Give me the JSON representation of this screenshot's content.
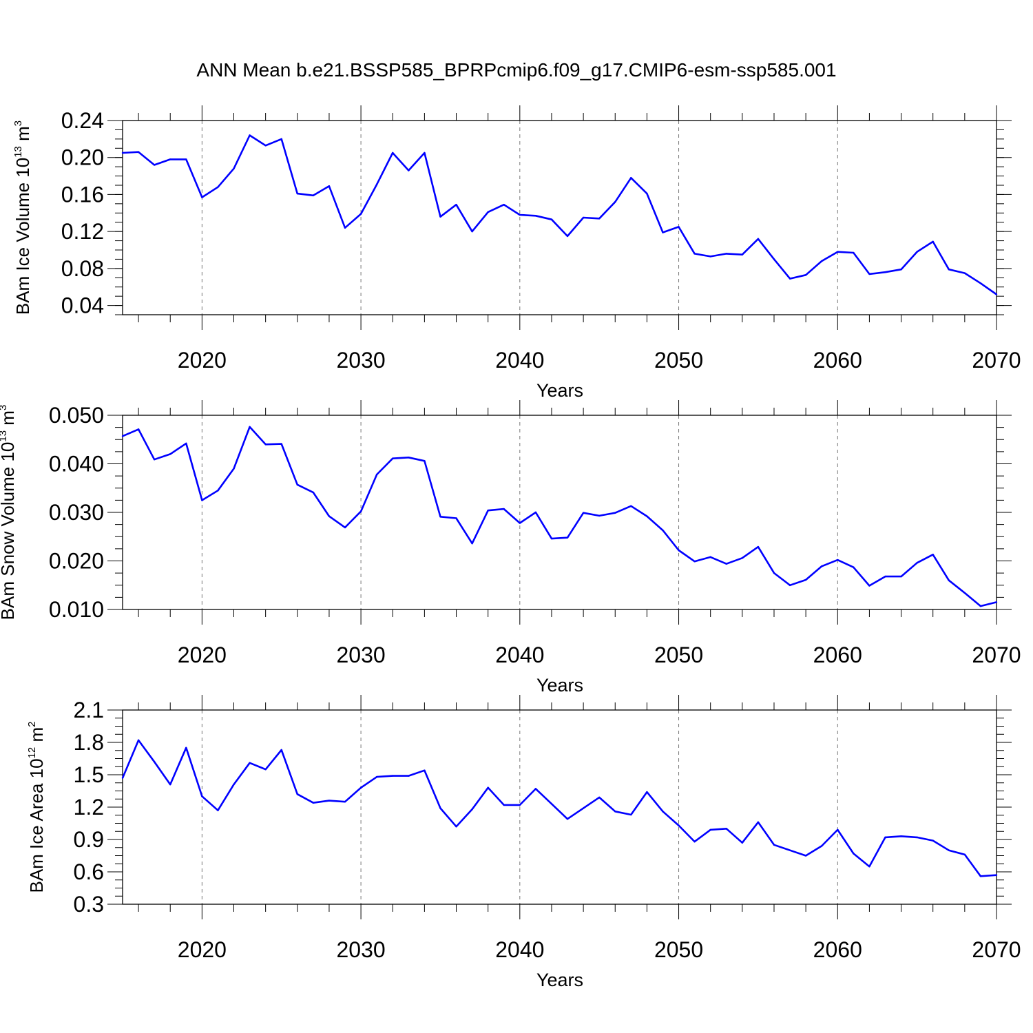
{
  "title": "ANN Mean b.e21.BSSP585_BPRPcmip6.f09_g17.CMIP6-esm-ssp585.001",
  "chart_data": [
    {
      "type": "line",
      "xlabel": "Years",
      "ylabel": {
        "prefix": "BAm Ice Volume 10",
        "exp": "13",
        "unit": " m",
        "unit_exp": "3"
      },
      "xlim": [
        2015,
        2070
      ],
      "ylim": [
        0.03,
        0.24
      ],
      "xticks": [
        2020,
        2030,
        2040,
        2050,
        2060,
        2070
      ],
      "yticks": [
        0.04,
        0.08,
        0.12,
        0.16,
        0.2,
        0.24
      ],
      "ytick_labels": [
        "0.04",
        "0.08",
        "0.12",
        "0.16",
        "0.20",
        "0.24"
      ],
      "grid": "dashed vertical at major x ticks",
      "color": "#0000ff",
      "x": [
        2015,
        2016,
        2017,
        2018,
        2019,
        2020,
        2021,
        2022,
        2023,
        2024,
        2025,
        2026,
        2027,
        2028,
        2029,
        2030,
        2031,
        2032,
        2033,
        2034,
        2035,
        2036,
        2037,
        2038,
        2039,
        2040,
        2041,
        2042,
        2043,
        2044,
        2045,
        2046,
        2047,
        2048,
        2049,
        2050,
        2051,
        2052,
        2053,
        2054,
        2055,
        2056,
        2057,
        2058,
        2059,
        2060,
        2061,
        2062,
        2063,
        2064,
        2065,
        2066,
        2067,
        2068,
        2069,
        2070
      ],
      "y": [
        0.205,
        0.206,
        0.192,
        0.198,
        0.198,
        0.157,
        0.168,
        0.188,
        0.224,
        0.213,
        0.22,
        0.161,
        0.159,
        0.169,
        0.124,
        0.139,
        0.171,
        0.205,
        0.186,
        0.205,
        0.136,
        0.149,
        0.12,
        0.141,
        0.149,
        0.138,
        0.137,
        0.133,
        0.115,
        0.135,
        0.134,
        0.152,
        0.178,
        0.161,
        0.119,
        0.125,
        0.096,
        0.093,
        0.096,
        0.095,
        0.112,
        0.09,
        0.069,
        0.073,
        0.088,
        0.098,
        0.097,
        0.074,
        0.076,
        0.079,
        0.098,
        0.109,
        0.079,
        0.075,
        0.064,
        0.052
      ]
    },
    {
      "type": "line",
      "xlabel": "Years",
      "ylabel": {
        "prefix": "BAm Snow Volume 10",
        "exp": "13",
        "unit": " m",
        "unit_exp": "3"
      },
      "xlim": [
        2015,
        2070
      ],
      "ylim": [
        0.01,
        0.05
      ],
      "xticks": [
        2020,
        2030,
        2040,
        2050,
        2060,
        2070
      ],
      "yticks": [
        0.01,
        0.02,
        0.03,
        0.04,
        0.05
      ],
      "ytick_labels": [
        "0.010",
        "0.020",
        "0.030",
        "0.040",
        "0.050"
      ],
      "grid": "dashed vertical at major x ticks",
      "color": "#0000ff",
      "x": [
        2015,
        2016,
        2017,
        2018,
        2019,
        2020,
        2021,
        2022,
        2023,
        2024,
        2025,
        2026,
        2027,
        2028,
        2029,
        2030,
        2031,
        2032,
        2033,
        2034,
        2035,
        2036,
        2037,
        2038,
        2039,
        2040,
        2041,
        2042,
        2043,
        2044,
        2045,
        2046,
        2047,
        2048,
        2049,
        2050,
        2051,
        2052,
        2053,
        2054,
        2055,
        2056,
        2057,
        2058,
        2059,
        2060,
        2061,
        2062,
        2063,
        2064,
        2065,
        2066,
        2067,
        2068,
        2069,
        2070
      ],
      "y": [
        0.0457,
        0.0471,
        0.0409,
        0.042,
        0.0442,
        0.0325,
        0.0345,
        0.039,
        0.0476,
        0.044,
        0.0441,
        0.0357,
        0.0341,
        0.0292,
        0.0269,
        0.0302,
        0.0378,
        0.0411,
        0.0413,
        0.0406,
        0.0291,
        0.0288,
        0.0236,
        0.0304,
        0.0307,
        0.0278,
        0.03,
        0.0246,
        0.0248,
        0.0299,
        0.0293,
        0.0299,
        0.0313,
        0.0292,
        0.0263,
        0.0222,
        0.0199,
        0.0208,
        0.0194,
        0.0206,
        0.0229,
        0.0175,
        0.015,
        0.0161,
        0.0189,
        0.0202,
        0.0187,
        0.0149,
        0.0168,
        0.0168,
        0.0196,
        0.0213,
        0.016,
        0.0134,
        0.0107,
        0.0115
      ]
    },
    {
      "type": "line",
      "xlabel": "Years",
      "ylabel": {
        "prefix": "BAm Ice Area 10",
        "exp": "12",
        "unit": " m",
        "unit_exp": "2"
      },
      "xlim": [
        2015,
        2070
      ],
      "ylim": [
        0.3,
        2.1
      ],
      "xticks": [
        2020,
        2030,
        2040,
        2050,
        2060,
        2070
      ],
      "yticks": [
        0.3,
        0.6,
        0.9,
        1.2,
        1.5,
        1.8,
        2.1
      ],
      "ytick_labels": [
        "0.3",
        "0.6",
        "0.9",
        "1.2",
        "1.5",
        "1.8",
        "2.1"
      ],
      "grid": "dashed vertical at major x ticks",
      "color": "#0000ff",
      "x": [
        2015,
        2016,
        2017,
        2018,
        2019,
        2020,
        2021,
        2022,
        2023,
        2024,
        2025,
        2026,
        2027,
        2028,
        2029,
        2030,
        2031,
        2032,
        2033,
        2034,
        2035,
        2036,
        2037,
        2038,
        2039,
        2040,
        2041,
        2042,
        2043,
        2044,
        2045,
        2046,
        2047,
        2048,
        2049,
        2050,
        2051,
        2052,
        2053,
        2054,
        2055,
        2056,
        2057,
        2058,
        2059,
        2060,
        2061,
        2062,
        2063,
        2064,
        2065,
        2066,
        2067,
        2068,
        2069,
        2070
      ],
      "y": [
        1.47,
        1.82,
        1.62,
        1.41,
        1.75,
        1.3,
        1.17,
        1.41,
        1.61,
        1.55,
        1.73,
        1.32,
        1.24,
        1.26,
        1.25,
        1.38,
        1.48,
        1.49,
        1.49,
        1.54,
        1.19,
        1.02,
        1.18,
        1.38,
        1.22,
        1.22,
        1.37,
        1.23,
        1.09,
        1.19,
        1.29,
        1.16,
        1.13,
        1.34,
        1.16,
        1.03,
        0.88,
        0.99,
        1.0,
        0.87,
        1.06,
        0.85,
        0.8,
        0.75,
        0.84,
        0.99,
        0.77,
        0.65,
        0.92,
        0.93,
        0.92,
        0.89,
        0.8,
        0.76,
        0.56,
        0.57
      ]
    }
  ]
}
